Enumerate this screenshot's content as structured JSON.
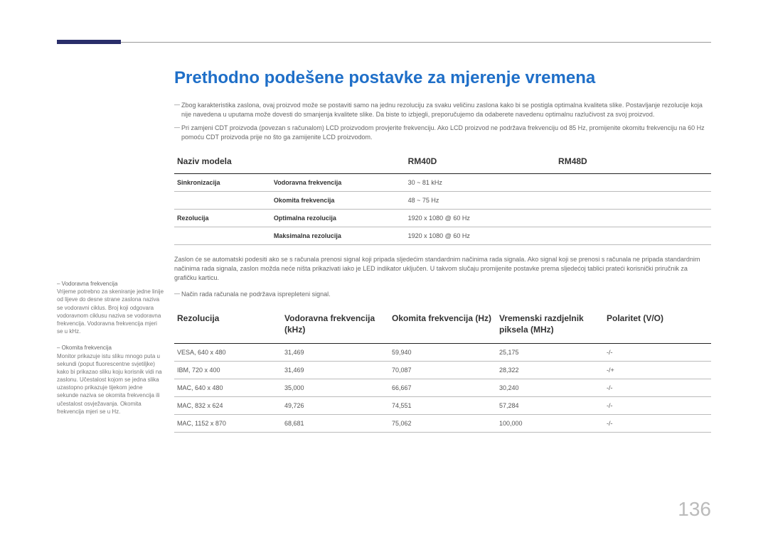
{
  "heading": "Prethodno podešene postavke za mjerenje vremena",
  "notes_top": [
    "Zbog karakteristika zaslona, ovaj proizvod može se postaviti samo na jednu rezoluciju za svaku veličinu zaslona kako bi se postigla optimalna kvaliteta slike. Postavljanje rezolucije koja nije navedena u uputama može dovesti do smanjenja kvalitete slike. Da biste to izbjegli, preporučujemo da odaberete navedenu optimalnu razlučivost za svoj proizvod.",
    "Pri zamjeni CDT proizvoda (povezan s računalom) LCD proizvodom provjerite frekvenciju. Ako LCD proizvod ne podržava frekvenciju od 85 Hz, promijenite okomitu frekvenciju na 60 Hz pomoću CDT proizvoda prije no što ga zamijenite LCD proizvodom."
  ],
  "table1": {
    "headers": [
      "Naziv modela",
      "",
      "RM40D",
      "RM48D"
    ],
    "rows": [
      [
        "Sinkronizacija",
        "Vodoravna frekvencija",
        "30 ~ 81 kHz",
        ""
      ],
      [
        "",
        "Okomita frekvencija",
        "48 ~ 75 Hz",
        ""
      ],
      [
        "Rezolucija",
        "Optimalna rezolucija",
        "1920 x 1080 @ 60 Hz",
        ""
      ],
      [
        "",
        "Maksimalna rezolucija",
        "1920 x 1080 @ 60 Hz",
        ""
      ]
    ]
  },
  "mid_paragraph": "Zaslon će se automatski podesiti ako se s računala prenosi signal koji pripada sljedećim standardnim načinima rada signala. Ako signal koji se prenosi s računala ne pripada standardnim načinima rada signala, zaslon možda neće ništa prikazivati iako je LED indikator uključen. U takvom slučaju promijenite postavke prema sljedećoj tablici prateći korisnički priručnik za grafičku karticu.",
  "mid_note": "Način rada računala ne podržava isprepleteni signal.",
  "table2": {
    "headers": [
      "Rezolucija",
      "Vodoravna frekvencija (kHz)",
      "Okomita frekvencija (Hz)",
      "Vremenski razdjelnik piksela (MHz)",
      "Polaritet (V/O)"
    ],
    "rows": [
      [
        "VESA, 640 x 480",
        "31,469",
        "59,940",
        "25,175",
        "-/-"
      ],
      [
        "IBM, 720 x 400",
        "31,469",
        "70,087",
        "28,322",
        "-/+"
      ],
      [
        "MAC, 640 x 480",
        "35,000",
        "66,667",
        "30,240",
        "-/-"
      ],
      [
        "MAC, 832 x 624",
        "49,726",
        "74,551",
        "57,284",
        "-/-"
      ],
      [
        "MAC, 1152 x 870",
        "68,681",
        "75,062",
        "100,000",
        "-/-"
      ]
    ]
  },
  "sidebar": [
    {
      "title": "Vodoravna frekvencija",
      "body": "Vrijeme potrebno za skeniranje jedne linije od lijeve do desne strane zaslona naziva se vodoravni ciklus. Broj koji odgovara vodoravnom ciklusu naziva se vodoravna frekvencija. Vodoravna frekvencija mjeri se u kHz."
    },
    {
      "title": "Okomita frekvencija",
      "body": "Monitor prikazuje istu sliku mnogo puta u sekundi (poput fluorescentne svjetiljke) kako bi prikazao sliku koju korisnik vidi na zaslonu. Učestalost kojom se jedna slika uzastopno prikazuje tijekom jedne sekunde naziva se okomita frekvencija ili učestalost osvježavanja. Okomita frekvencija mjeri se u Hz."
    }
  ],
  "page_number": "136"
}
